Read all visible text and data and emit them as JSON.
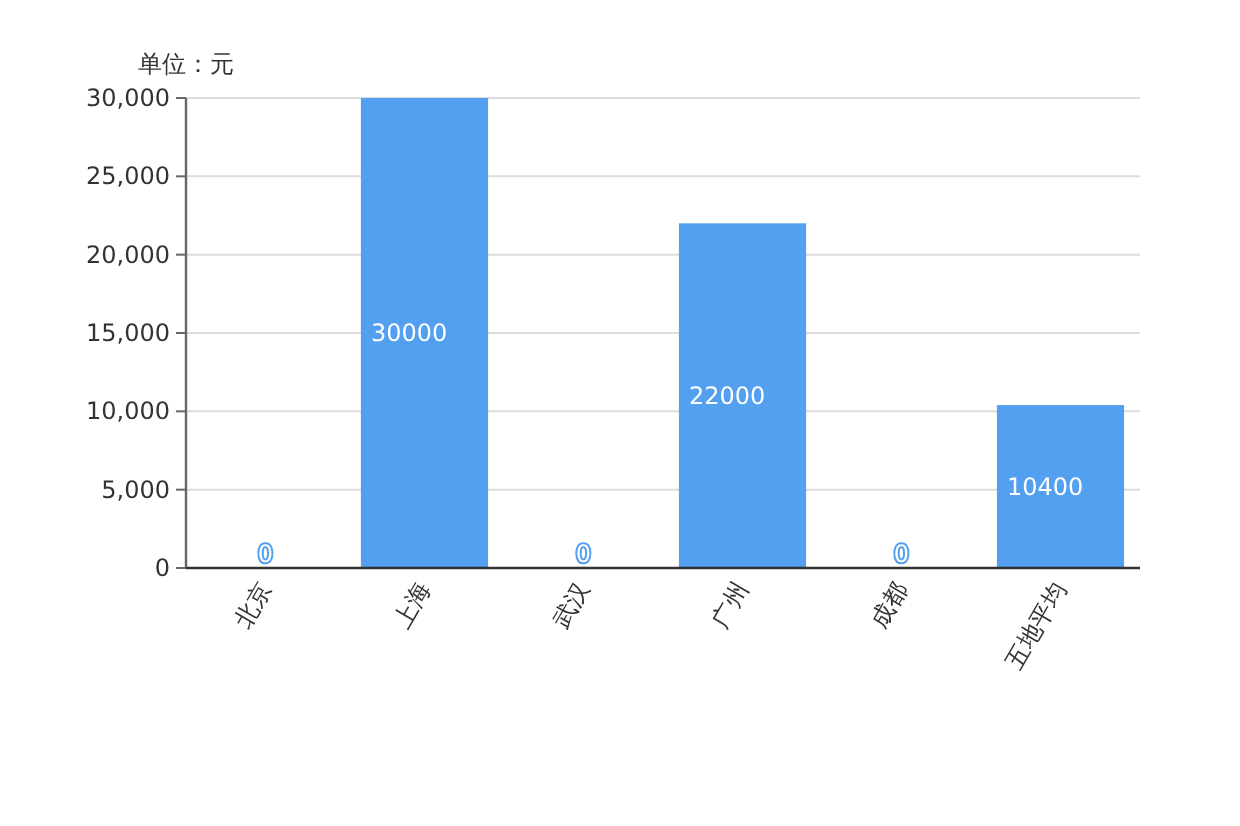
{
  "chart_data": {
    "type": "bar",
    "ylabel": "单位：元",
    "categories": [
      "北京",
      "上海",
      "武汉",
      "广州",
      "成都",
      "五地平均"
    ],
    "series": [
      {
        "color": "#539ff0",
        "values": [
          0,
          30000,
          0,
          22000,
          0,
          10400
        ]
      }
    ],
    "ylim": [
      0,
      30000
    ],
    "yticks": [
      0,
      {
        "value": 5000,
        "label": "5,000"
      },
      {
        "value": 10000,
        "label": "10,000"
      },
      {
        "value": 15000,
        "label": "15,000"
      },
      {
        "value": 20000,
        "label": "20,000"
      },
      {
        "value": 25000,
        "label": "25,000"
      },
      {
        "value": 30000,
        "label": "30,000"
      }
    ],
    "grid": "y",
    "data_labels": true
  }
}
